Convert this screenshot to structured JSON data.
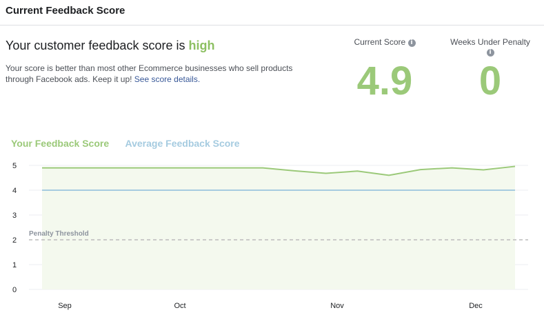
{
  "header": {
    "title": "Current Feedback Score"
  },
  "summary": {
    "headline_prefix": "Your customer feedback score is ",
    "headline_level": "high",
    "description": "Your score is better than most other Ecommerce businesses who sell products through Facebook ads. Keep it up! ",
    "details_link": "See score details."
  },
  "stats": {
    "current_score_label": "Current Score",
    "current_score_value": "4.9",
    "weeks_label": "Weeks Under Penalty",
    "weeks_value": "0",
    "info_glyph": "i"
  },
  "colors": {
    "your_score": "#9bc979",
    "average": "#a5cbe0",
    "area_fill": "#f4f9ee",
    "threshold": "#bbbbbb"
  },
  "chart_data": {
    "type": "line",
    "x_ticks": [
      "Sep",
      "Oct",
      "Nov",
      "Dec"
    ],
    "y_ticks": [
      "5",
      "4",
      "3",
      "2",
      "1",
      "0"
    ],
    "ylim": [
      0,
      5
    ],
    "legend": [
      "Your Feedback Score",
      "Average Feedback Score"
    ],
    "threshold": {
      "label": "Penalty Threshold",
      "value": 2
    },
    "series": [
      {
        "name": "Your Feedback Score",
        "values": [
          4.9,
          4.9,
          4.9,
          4.9,
          4.9,
          4.9,
          4.9,
          4.9,
          4.78,
          4.68,
          4.77,
          4.6,
          4.83,
          4.9,
          4.82,
          4.96
        ]
      },
      {
        "name": "Average Feedback Score",
        "values": [
          4.0,
          4.0,
          4.0,
          4.0,
          4.0,
          4.0,
          4.0,
          4.0,
          4.0,
          4.0,
          4.0,
          4.0,
          4.0,
          4.0,
          4.0,
          4.0
        ]
      }
    ]
  }
}
